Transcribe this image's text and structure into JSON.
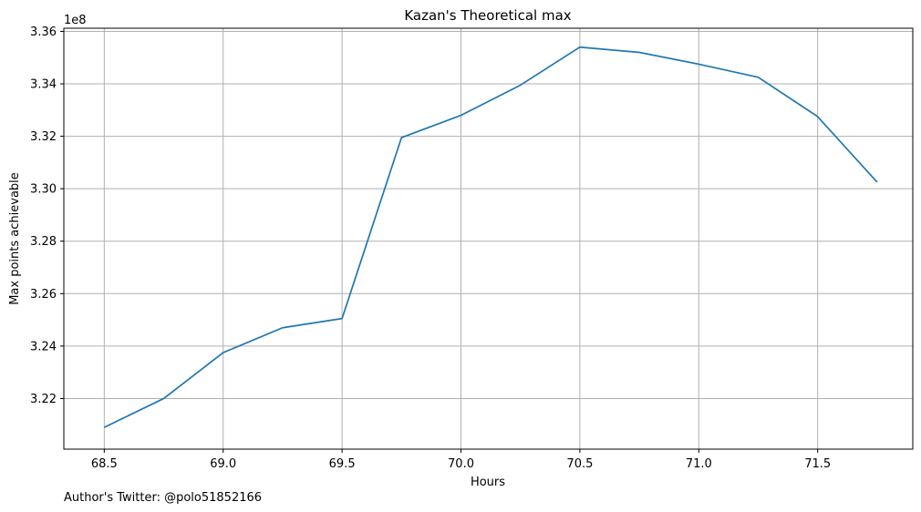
{
  "chart_data": {
    "type": "line",
    "title": "Kazan's Theoretical max",
    "xlabel": "Hours",
    "ylabel": "Max points achievable",
    "y_offset_label": "1e8",
    "xlim": [
      68.33,
      71.9
    ],
    "ylim": [
      3.2007,
      3.3612
    ],
    "x_ticks": [
      68.5,
      69.0,
      69.5,
      70.0,
      70.5,
      71.0,
      71.5
    ],
    "x_tick_labels": [
      "68.5",
      "69.0",
      "69.5",
      "70.0",
      "70.5",
      "71.0",
      "71.5"
    ],
    "y_ticks": [
      3.22,
      3.24,
      3.26,
      3.28,
      3.3,
      3.32,
      3.34,
      3.36
    ],
    "y_tick_labels": [
      "3.22",
      "3.24",
      "3.26",
      "3.28",
      "3.30",
      "3.32",
      "3.34",
      "3.36"
    ],
    "grid": true,
    "color": "#1f77b4",
    "series": [
      {
        "x": [
          68.5,
          68.75,
          69.0,
          69.25,
          69.5,
          69.75,
          70.0,
          70.25,
          70.5,
          70.75,
          71.0,
          71.25,
          71.5,
          71.75
        ],
        "values": [
          3.209,
          3.22,
          3.2375,
          3.247,
          3.2505,
          3.3195,
          3.328,
          3.3395,
          3.354,
          3.352,
          3.3475,
          3.3425,
          3.3275,
          3.3025
        ]
      }
    ]
  },
  "footnote": "Author's Twitter: @polo51852166"
}
